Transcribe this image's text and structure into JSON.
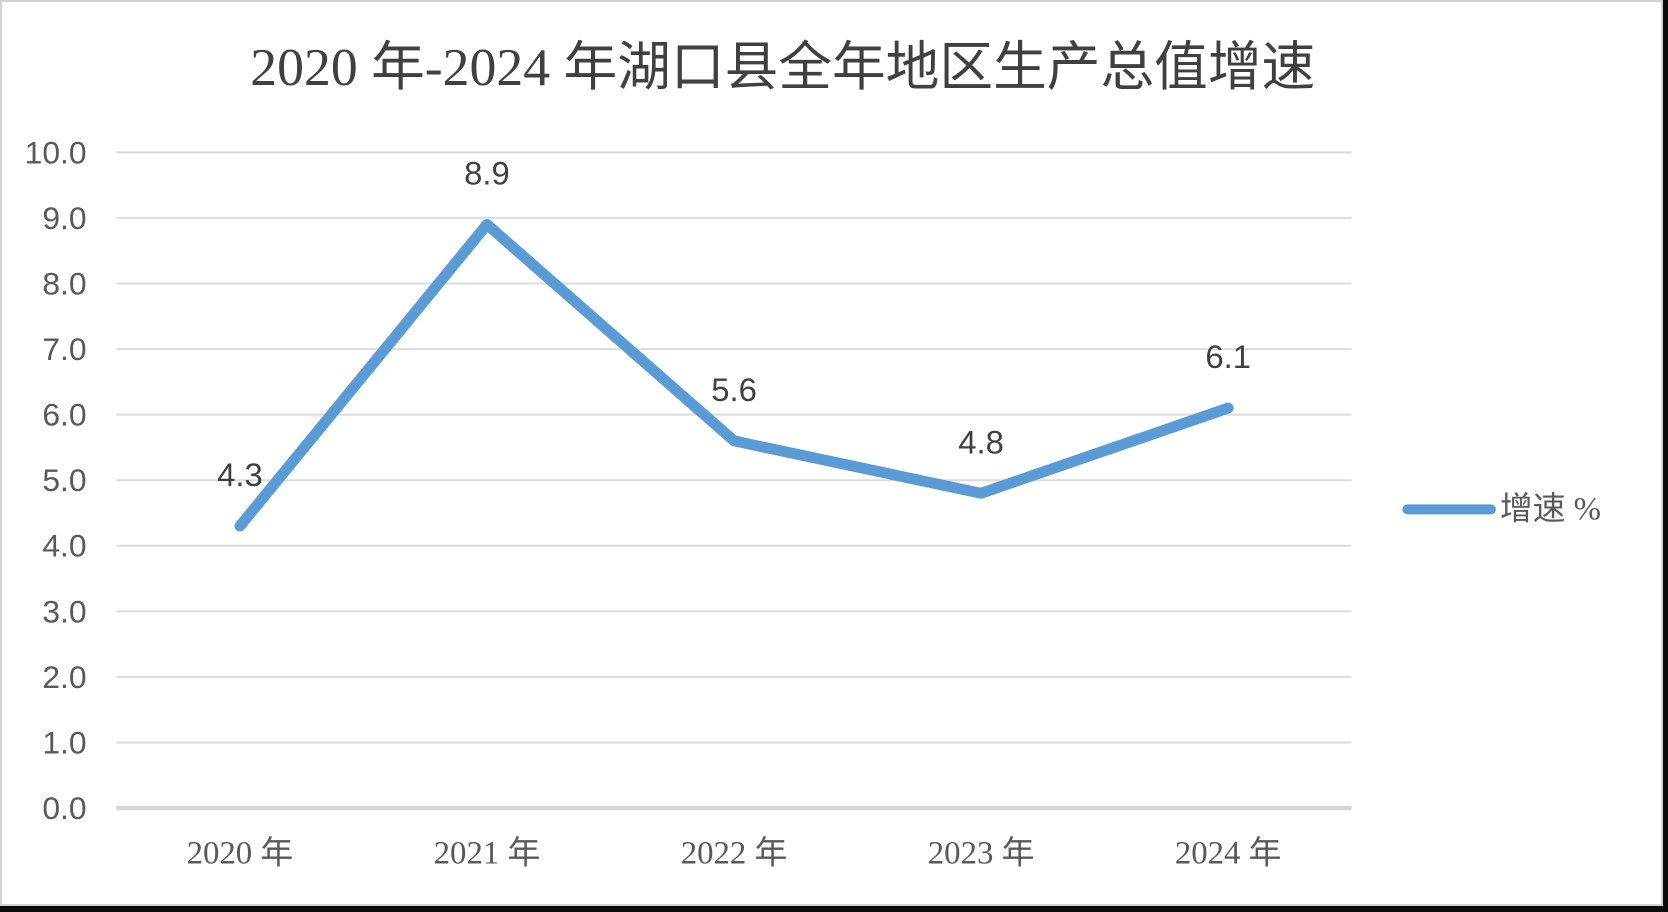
{
  "chart_data": {
    "type": "line",
    "title": "2020 年-2024 年湖口县全年地区生产总值增速",
    "categories": [
      "2020 年",
      "2021 年",
      "2022 年",
      "2023 年",
      "2024 年"
    ],
    "series": [
      {
        "name": "增速 %",
        "values": [
          4.3,
          8.9,
          5.6,
          4.8,
          6.1
        ]
      }
    ],
    "data_labels": [
      "4.3",
      "8.9",
      "5.6",
      "4.8",
      "6.1"
    ],
    "xlabel": "",
    "ylabel": "",
    "ylim": [
      0,
      10
    ],
    "ytick_step": 1,
    "ytick_labels": [
      "0.0",
      "1.0",
      "2.0",
      "3.0",
      "4.0",
      "5.0",
      "6.0",
      "7.0",
      "8.0",
      "9.0",
      "10.0"
    ],
    "grid": true,
    "legend_position": "right",
    "colors": {
      "series_line": "#5B9BD5",
      "gridline": "#DBDBDB",
      "axis_line": "#D6D6D6",
      "title_text": "#404040",
      "axis_text": "#595959",
      "data_label_text": "#404040"
    }
  }
}
